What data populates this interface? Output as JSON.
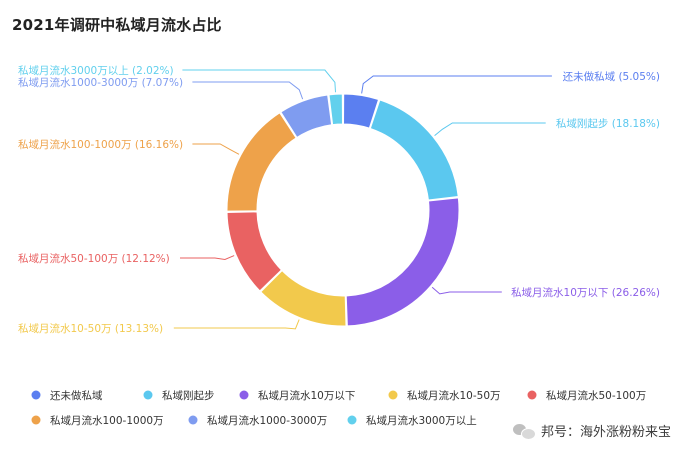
{
  "chart_data": {
    "type": "pie",
    "variant": "donut",
    "title": "2021年调研中私域月流水占比",
    "categories": [
      "还未做私域",
      "私域刚起步",
      "私域月流水10万以下",
      "私域月流水10-50万",
      "私域月流水50-100万",
      "私域月流水100-1000万",
      "私域月流水1000-3000万",
      "私域月流水3000万以上"
    ],
    "values": [
      5.05,
      18.18,
      26.26,
      13.13,
      12.12,
      16.16,
      7.07,
      2.02
    ],
    "labels": [
      "还未做私域 (5.05%)",
      "私域刚起步 (18.18%)",
      "私域月流水10万以下 (26.26%)",
      "私域月流水10-50万 (13.13%)",
      "私域月流水50-100万 (12.12%)",
      "私域月流水100-1000万 (16.16%)",
      "私域月流水1000-3000万 (7.07%)",
      "私域月流水3000万以上 (2.02%)"
    ],
    "colors": [
      "#5b7ff0",
      "#5bc8ef",
      "#8b5ee8",
      "#f2c94c",
      "#e96262",
      "#eea24a",
      "#7f9cf0",
      "#62d0ed"
    ],
    "legend_position": "bottom"
  },
  "watermark": {
    "text": "邦号：海外涨粉粉来宝",
    "icon": "wechat-icon"
  }
}
